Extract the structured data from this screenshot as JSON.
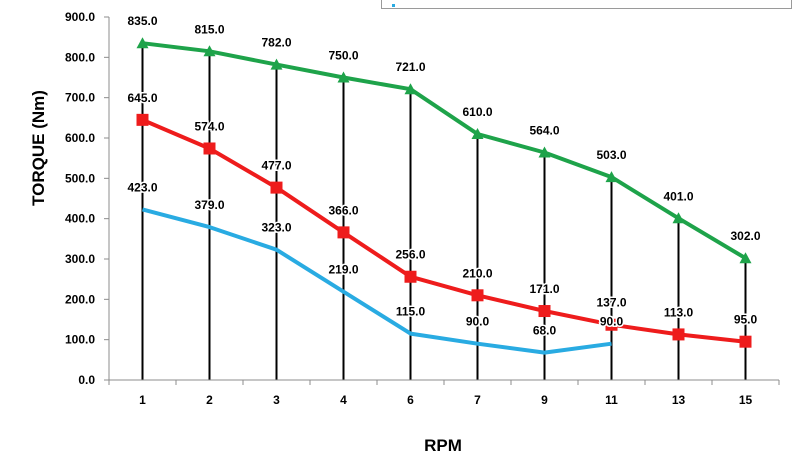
{
  "chart_data": {
    "type": "line",
    "categories": [
      "1",
      "2",
      "3",
      "4",
      "6",
      "7",
      "9",
      "11",
      "13",
      "15"
    ],
    "series": [
      {
        "values": [
          835,
          815,
          782,
          750,
          721,
          610,
          564,
          503,
          401,
          302
        ],
        "color": "#1ea34a",
        "marker": "triangle"
      },
      {
        "values": [
          645,
          574,
          477,
          366,
          256,
          210,
          171,
          137,
          113,
          95
        ],
        "color": "#ee1c1c",
        "marker": "square"
      },
      {
        "values": [
          423,
          379,
          323,
          219,
          115,
          90,
          68,
          90,
          null,
          null
        ],
        "color": "#29abe2",
        "marker": "none"
      }
    ],
    "xlabel": "RPM",
    "ylabel": "TORQUE (Nm)",
    "ylim": [
      0,
      900
    ],
    "yticks": [
      "0.0",
      "100.0",
      "200.0",
      "300.0",
      "400.0",
      "500.0",
      "600.0",
      "700.0",
      "800.0",
      "900.0"
    ],
    "data_labels": true,
    "vertical_drop_lines": true,
    "grid": false
  }
}
